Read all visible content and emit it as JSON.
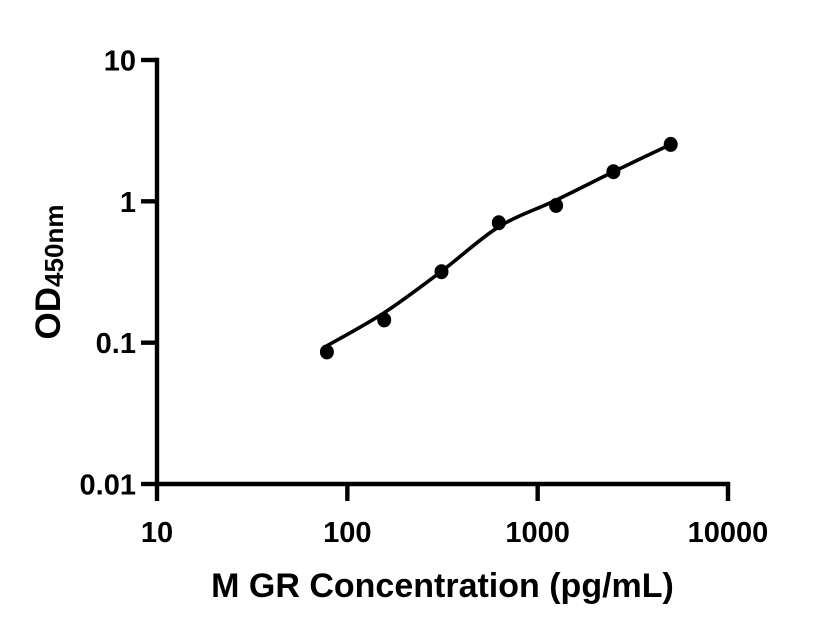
{
  "figure": {
    "background_color": "#ffffff",
    "foreground_color": "#000000"
  },
  "chart_data": {
    "type": "scatter",
    "title": "",
    "xlabel": "M GR Concentration (pg/mL)",
    "ylabel": "OD",
    "ylabel_subscript": "450nm",
    "xscale": "log",
    "yscale": "log",
    "xlim": [
      10,
      10000
    ],
    "ylim": [
      0.01,
      10
    ],
    "x_ticks": [
      10,
      100,
      1000,
      10000
    ],
    "x_tick_labels": [
      "10",
      "100",
      "1000",
      "10000"
    ],
    "y_ticks": [
      10,
      1,
      0.1,
      0.01
    ],
    "y_tick_labels": [
      "10",
      "1",
      "0.1",
      "0.01"
    ],
    "grid": false,
    "legend": null,
    "series": [
      {
        "name": "standard-curve-points",
        "marker": "filled-circle",
        "color": "#000000",
        "x": [
          78.125,
          156.25,
          312.5,
          625,
          1250,
          2500,
          5000
        ],
        "y": [
          0.086,
          0.145,
          0.318,
          0.706,
          0.934,
          1.62,
          2.53
        ]
      }
    ],
    "fit_curve": {
      "name": "fitted-standard-curve",
      "color": "#000000",
      "points": [
        [
          78.125,
          0.095
        ],
        [
          156.25,
          0.163
        ],
        [
          312.5,
          0.32
        ],
        [
          625,
          0.66
        ],
        [
          1250,
          1.02
        ],
        [
          2500,
          1.62
        ],
        [
          5000,
          2.53
        ]
      ]
    }
  }
}
